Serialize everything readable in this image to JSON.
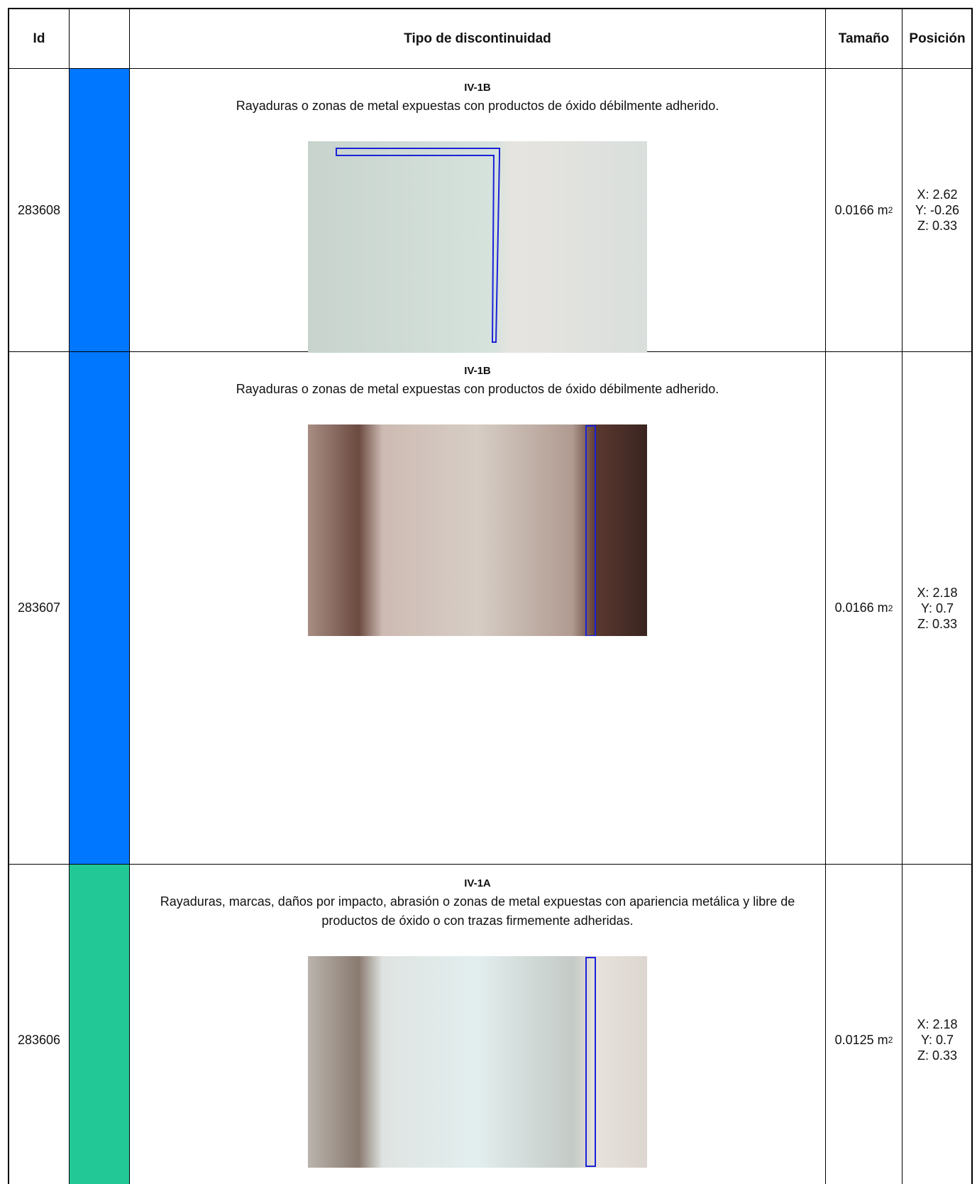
{
  "header": {
    "id": "Id",
    "type": "Tipo de discontinuidad",
    "size": "Tamaño",
    "position": "Posición"
  },
  "rows": [
    {
      "id": "283608",
      "color": "#0077ff",
      "code": "IV-1B",
      "description": "Rayaduras o zonas de metal expuestas con productos de óxido débilmente adherido.",
      "size": "0.0166 m",
      "size_exp": "2",
      "position": [
        "X: 2.62",
        "Y: -0.26",
        "Z: 0.33"
      ]
    },
    {
      "id": "283607",
      "color": "#0077ff",
      "code": "IV-1B",
      "description": "Rayaduras o zonas de metal expuestas con productos de óxido débilmente adherido.",
      "size": "0.0166 m",
      "size_exp": "2",
      "position": [
        "X: 2.18",
        "Y: 0.7",
        "Z: 0.33"
      ]
    },
    {
      "id": "283606",
      "color": "#22c997",
      "code": "IV-1A",
      "description": "Rayaduras, marcas, daños por impacto, abrasión o zonas de metal expuestas con apariencia metálica y libre de productos de óxido o con trazas firmemente adheridas.",
      "size": "0.0125 m",
      "size_exp": "2",
      "position": [
        "X: 2.18",
        "Y: 0.7",
        "Z: 0.33"
      ]
    }
  ]
}
